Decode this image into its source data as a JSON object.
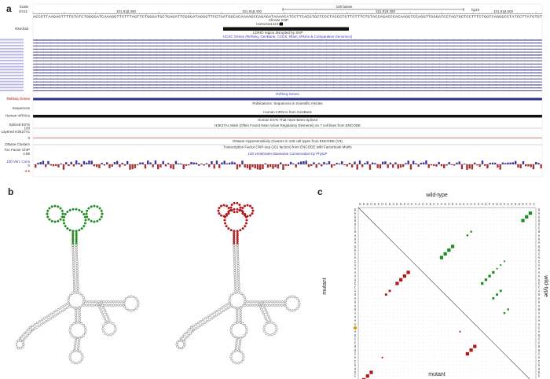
{
  "figure": {
    "panels": {
      "a": "a",
      "b": "b",
      "c": "c"
    },
    "browser": {
      "scale_label": "Scale",
      "assembly_label": "chr11:",
      "scale_bar_text": "100 bases",
      "assembly_build": "hg19",
      "positions": [
        "101,918,360",
        "101,918,400",
        "101,918,450",
        "101,918,500"
      ],
      "dna_sequence": "ACCCTTAAGAGTTTTGTATCTGGGGATCAAAGGTTCTTTAGTTCTGGGATGCTGAGATTCGGGATAGGGTTCCTAATGGCACAAAAGCCAGAGATAAAACATCCTTCACGTGCTCCCTACCCTGTTCTTTCTGTACCAGACCCACAAGGTCCAGGTTGGGATCCTAGTGCTCCTTTCTGGTCAGGGCCTATCCTTATGTGT",
      "clinvar_snp_label": "ClinVar SNP",
      "rs_label": "rs101311142419",
      "region_label": "LD/HD region disrupted by SNP",
      "rna_label": "RNAfold",
      "ucsc_genes_header": "UCSC Genes (RefSeq, GenBank, CCDS, Rfam, tRNAs & Comparative Genomics)",
      "refseq_header": "RefSeq Genes",
      "refseq_label": "RefSeq Genes",
      "publications_header": "Publications: Sequences in Scientific Articles",
      "sequences_label": "Sequences",
      "human_mrnas_header": "Human mRNAs from GenBank",
      "human_mrnas_label": "Human mRNAs",
      "human_ests_header": "Human ESTs That Have Been Spliced",
      "spliced_label": "Spliced ESTs",
      "h3k27ac_label": "Layered H3K27Ac",
      "h3k27ac_header": "H3K27Ac Mark (Often Found Near Active Regulatory Elements) on 7 cell lines from ENCODE",
      "dnase_label": "DNase Clusters",
      "dnase_header": "DNaseI Hypersensitivity Clusters in 125 cell types from ENCODE (V3)",
      "txn_label": "Txn Factor ChIP",
      "txn_header": "Transcription Factor ChIP-seq (161 factors) from ENCODE with Factorbook Motifs",
      "cons_header": "100 vertebrates Basewise Conservation by PhyloP",
      "cons_label": "100 Vert. Cons",
      "cons_top": "4.88",
      "cons_zero": "0",
      "cons_bottom": "-4.5",
      "axis_100": "100",
      "axis_0": "0"
    },
    "dotplot": {
      "top_label": "wild-type",
      "right_label": "wild-type",
      "left_label": "mutant",
      "bottom_label": "mutant",
      "sequence": "GGGUUCUAUAGGCACAAAAGCCAGAGAUAAAACAUCCUUCACGUGCCC"
    },
    "colors": {
      "wild_type": "#1e8c1e",
      "mutant": "#b01818",
      "track_blue": "#2d2d8a",
      "link_blue": "#3a3ab8",
      "snp_marker": "#e68a00"
    },
    "icons": {
      "wild_type_structure": "rna-secondary-structure-green",
      "mutant_structure": "rna-secondary-structure-red"
    }
  }
}
